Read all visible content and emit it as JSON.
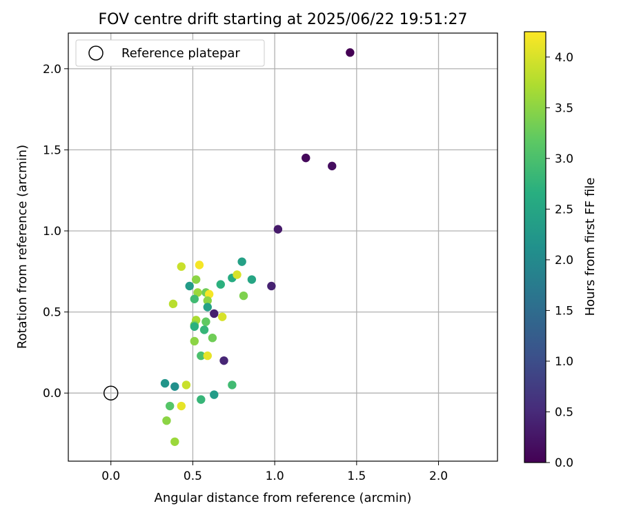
{
  "chart_data": {
    "type": "scatter",
    "title": "FOV centre drift starting at 2025/06/22 19:51:27",
    "xlabel": "Angular distance from reference (arcmin)",
    "ylabel": "Rotation from reference (arcmin)",
    "xlim": [
      -0.26,
      2.36
    ],
    "ylim": [
      -0.42,
      2.22
    ],
    "xticks": [
      0.0,
      0.5,
      1.0,
      1.5,
      2.0
    ],
    "xtick_labels": [
      "0.0",
      "0.5",
      "1.0",
      "1.5",
      "2.0"
    ],
    "yticks": [
      0.0,
      0.5,
      1.0,
      1.5,
      2.0
    ],
    "ytick_labels": [
      "0.0",
      "0.5",
      "1.0",
      "1.5",
      "2.0"
    ],
    "grid": true,
    "legend": {
      "placement": "top-left",
      "entries": [
        {
          "label": "Reference platepar",
          "marker": "open-circle",
          "x": 0.0,
          "y": 0.0
        }
      ]
    },
    "colorbar": {
      "label": "Hours from first FF file",
      "colormap": "viridis",
      "range": [
        0.0,
        4.25
      ],
      "ticks": [
        0.0,
        0.5,
        1.0,
        1.5,
        2.0,
        2.5,
        3.0,
        3.5,
        4.0
      ],
      "tick_labels": [
        "0.0",
        "0.5",
        "1.0",
        "1.5",
        "2.0",
        "2.5",
        "3.0",
        "3.5",
        "4.0"
      ]
    },
    "series": [
      {
        "points": [
          {
            "x": 1.46,
            "y": 2.1,
            "c": 0.0
          },
          {
            "x": 1.19,
            "y": 1.45,
            "c": 0.1
          },
          {
            "x": 1.35,
            "y": 1.4,
            "c": 0.15
          },
          {
            "x": 1.02,
            "y": 1.01,
            "c": 0.3
          },
          {
            "x": 0.98,
            "y": 0.66,
            "c": 0.4
          },
          {
            "x": 0.63,
            "y": 0.49,
            "c": 0.35
          },
          {
            "x": 0.69,
            "y": 0.2,
            "c": 0.45
          },
          {
            "x": 0.33,
            "y": 0.06,
            "c": 2.2
          },
          {
            "x": 0.39,
            "y": 0.04,
            "c": 2.1
          },
          {
            "x": 0.63,
            "y": -0.01,
            "c": 2.3
          },
          {
            "x": 0.74,
            "y": 0.05,
            "c": 2.9
          },
          {
            "x": 0.55,
            "y": -0.04,
            "c": 2.8
          },
          {
            "x": 0.36,
            "y": -0.08,
            "c": 3.1
          },
          {
            "x": 0.43,
            "y": -0.08,
            "c": 4.1
          },
          {
            "x": 0.34,
            "y": -0.17,
            "c": 3.5
          },
          {
            "x": 0.39,
            "y": -0.3,
            "c": 3.6
          },
          {
            "x": 0.46,
            "y": 0.05,
            "c": 3.9
          },
          {
            "x": 0.8,
            "y": 0.81,
            "c": 2.4
          },
          {
            "x": 0.74,
            "y": 0.71,
            "c": 2.6
          },
          {
            "x": 0.86,
            "y": 0.7,
            "c": 2.5
          },
          {
            "x": 0.67,
            "y": 0.67,
            "c": 2.7
          },
          {
            "x": 0.48,
            "y": 0.66,
            "c": 2.3
          },
          {
            "x": 0.43,
            "y": 0.78,
            "c": 3.9
          },
          {
            "x": 0.54,
            "y": 0.79,
            "c": 4.2
          },
          {
            "x": 0.77,
            "y": 0.73,
            "c": 4.0
          },
          {
            "x": 0.52,
            "y": 0.7,
            "c": 3.5
          },
          {
            "x": 0.81,
            "y": 0.6,
            "c": 3.4
          },
          {
            "x": 0.53,
            "y": 0.62,
            "c": 3.6
          },
          {
            "x": 0.58,
            "y": 0.62,
            "c": 3.3
          },
          {
            "x": 0.6,
            "y": 0.61,
            "c": 4.2
          },
          {
            "x": 0.51,
            "y": 0.58,
            "c": 2.9
          },
          {
            "x": 0.59,
            "y": 0.57,
            "c": 3.5
          },
          {
            "x": 0.38,
            "y": 0.55,
            "c": 3.8
          },
          {
            "x": 0.59,
            "y": 0.53,
            "c": 2.4
          },
          {
            "x": 0.68,
            "y": 0.47,
            "c": 4.0
          },
          {
            "x": 0.52,
            "y": 0.45,
            "c": 3.7
          },
          {
            "x": 0.58,
            "y": 0.44,
            "c": 3.2
          },
          {
            "x": 0.51,
            "y": 0.42,
            "c": 3.4
          },
          {
            "x": 0.51,
            "y": 0.41,
            "c": 2.7
          },
          {
            "x": 0.57,
            "y": 0.39,
            "c": 2.8
          },
          {
            "x": 0.62,
            "y": 0.34,
            "c": 3.3
          },
          {
            "x": 0.51,
            "y": 0.32,
            "c": 3.5
          },
          {
            "x": 0.55,
            "y": 0.23,
            "c": 3.0
          },
          {
            "x": 0.59,
            "y": 0.23,
            "c": 4.1
          }
        ]
      }
    ]
  }
}
